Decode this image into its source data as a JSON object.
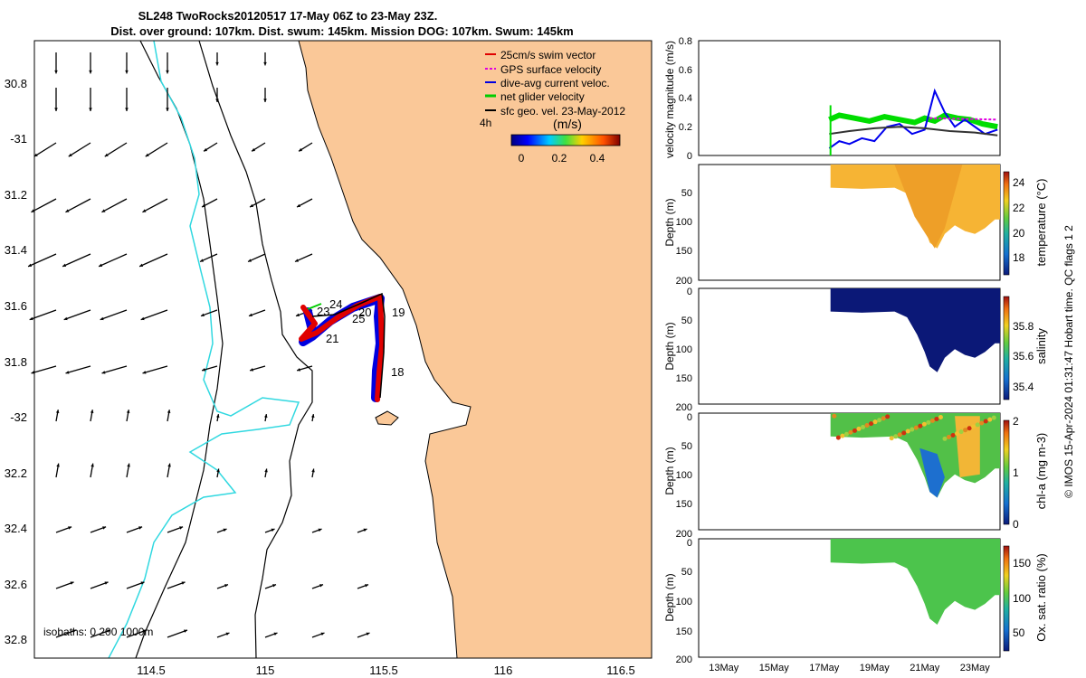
{
  "title": {
    "line1": "SL248 TwoRocks20120517 17-May 06Z to 23-May 23Z.",
    "line2": "Dist. over ground: 107km. Dist. swum: 145km. Mission DOG: 107km. Swum: 145km"
  },
  "map": {
    "lon_labels": [
      "114.5",
      "115",
      "115.5",
      "116",
      "116.5"
    ],
    "lat_labels": [
      "30.8",
      "-31",
      "31.2",
      "31.4",
      "31.6",
      "31.8",
      "-32",
      "32.2",
      "32.4",
      "32.6",
      "32.8"
    ],
    "legend": [
      {
        "label": "25cm/s swim vector",
        "color": "#e00000"
      },
      {
        "label": "GPS surface velocity",
        "color": "#e000e0"
      },
      {
        "label": "dive-avg current veloc.",
        "color": "#0000e0"
      },
      {
        "label": "net glider velocity",
        "color": "#00cc00"
      },
      {
        "label": "sfc geo. vel. 23-May-2012",
        "color": "#000000"
      }
    ],
    "scale_label": "4h",
    "colorbar_unit": "(m/s)",
    "colorbar_ticks": [
      "0",
      "0.2",
      "0.4"
    ],
    "day_labels": [
      "24",
      "23",
      "20",
      "25",
      "21",
      "19",
      "18"
    ],
    "isobath_label": "isobaths: 0   200  1000m",
    "colors": {
      "land": "#fac898",
      "coast": "#000000",
      "isobath_deep": "#30d8e0"
    }
  },
  "chart_data": [
    {
      "type": "line",
      "ylabel": "velocity magnitude (m/s)",
      "yticks": [
        "0",
        "0.2",
        "0.4",
        "0.6",
        "0.8"
      ],
      "ylim": [
        0,
        0.8
      ],
      "series": [
        {
          "name": "net glider velocity",
          "color": "#00dd00",
          "x": [
            17.2,
            17.6,
            18.2,
            18.8,
            19.4,
            20.0,
            20.6,
            21.0,
            21.4,
            21.8,
            22.3,
            22.8,
            23.3,
            23.9
          ],
          "values": [
            0.25,
            0.28,
            0.26,
            0.24,
            0.27,
            0.25,
            0.23,
            0.26,
            0.24,
            0.28,
            0.26,
            0.25,
            0.22,
            0.2
          ]
        },
        {
          "name": "dive-avg current veloc.",
          "color": "#0000ee",
          "x": [
            17.2,
            17.6,
            18.0,
            18.5,
            19.0,
            19.5,
            20.0,
            20.5,
            21.0,
            21.4,
            21.8,
            22.2,
            22.6,
            23.0,
            23.4,
            23.9
          ],
          "values": [
            0.05,
            0.1,
            0.08,
            0.12,
            0.1,
            0.2,
            0.22,
            0.15,
            0.18,
            0.45,
            0.3,
            0.2,
            0.25,
            0.2,
            0.15,
            0.18
          ]
        },
        {
          "name": "sfc geo. vel.",
          "color": "#333333",
          "x": [
            17.2,
            18.0,
            19.0,
            20.0,
            21.0,
            22.0,
            23.0,
            23.9
          ],
          "values": [
            0.15,
            0.17,
            0.19,
            0.2,
            0.19,
            0.17,
            0.16,
            0.14
          ]
        },
        {
          "name": "GPS surface velocity",
          "color": "#e000e0",
          "x": [
            21.2,
            23.9
          ],
          "values": [
            0.26,
            0.25
          ]
        }
      ]
    },
    {
      "type": "heatmap",
      "variable": "temperature",
      "ylabel": "Depth (m)",
      "yticks": [
        "50",
        "100",
        "150",
        "200"
      ],
      "ylim": [
        0,
        200
      ],
      "colorbar_label": "temperature (°C)",
      "colorbar_ticks": [
        "18",
        "20",
        "22",
        "24"
      ],
      "clim": [
        16.5,
        24.8
      ]
    },
    {
      "type": "heatmap",
      "variable": "salinity",
      "ylabel": "Depth (m)",
      "yticks": [
        "0",
        "50",
        "100",
        "150",
        "200"
      ],
      "ylim": [
        0,
        200
      ],
      "colorbar_label": "salinity",
      "colorbar_ticks": [
        "35.4",
        "35.6",
        "35.8"
      ],
      "clim": [
        35.3,
        35.95
      ]
    },
    {
      "type": "heatmap",
      "variable": "chl-a",
      "ylabel": "Depth (m)",
      "yticks": [
        "0",
        "50",
        "100",
        "150",
        "200"
      ],
      "ylim": [
        0,
        200
      ],
      "colorbar_label": "chl-a (mg m-3)",
      "colorbar_ticks": [
        "0",
        "1",
        "2"
      ],
      "clim": [
        0,
        2
      ]
    },
    {
      "type": "heatmap",
      "variable": "oxygen saturation",
      "ylabel": "Depth (m)",
      "yticks": [
        "0",
        "50",
        "100",
        "150",
        "200"
      ],
      "ylim": [
        0,
        200
      ],
      "colorbar_label": "Ox. sat. ratio (%)",
      "colorbar_ticks": [
        "50",
        "100",
        "150"
      ],
      "clim": [
        25,
        175
      ]
    }
  ],
  "timeseries": {
    "xlim": [
      12,
      24
    ],
    "data_start": 17.25,
    "data_end": 24,
    "xticks": [
      {
        "day": 13,
        "label": "13May"
      },
      {
        "day": 15,
        "label": "15May"
      },
      {
        "day": 17,
        "label": "17May"
      },
      {
        "day": 19,
        "label": "19May"
      },
      {
        "day": 21,
        "label": "21May"
      },
      {
        "day": 23,
        "label": "23May"
      }
    ],
    "section_profile": {
      "x": [
        17.25,
        18.5,
        19.8,
        20.3,
        20.7,
        21.0,
        21.2,
        21.5,
        21.8,
        22.2,
        22.6,
        23.0,
        23.4,
        23.8,
        24.0
      ],
      "depth": [
        40,
        42,
        40,
        50,
        80,
        110,
        135,
        145,
        120,
        105,
        115,
        120,
        110,
        95,
        95
      ]
    }
  },
  "side_note": "© IMOS 15-Apr-2024 01:31:47 Hobart time. QC flags 1  2"
}
